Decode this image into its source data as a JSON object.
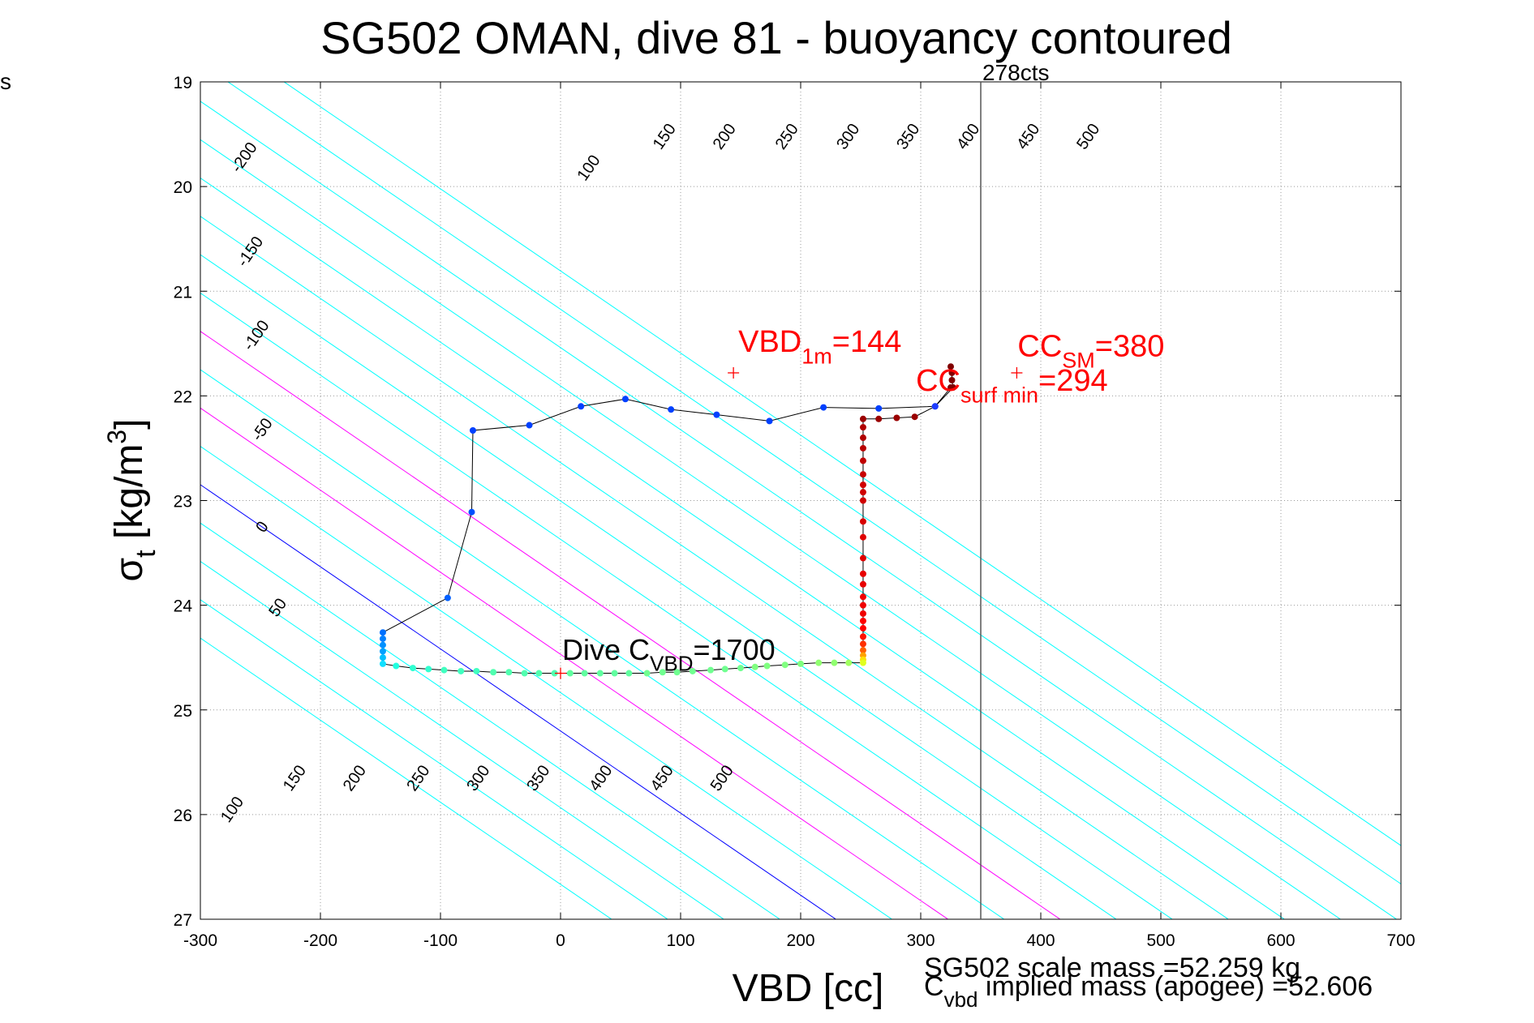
{
  "chart_data": {
    "type": "scatter",
    "title": "SG502 OMAN, dive 81 - buoyancy contoured",
    "xlabel": "VBD [cc]",
    "ylabel_base": "σ",
    "ylabel_sub": "t",
    "ylabel_unit_pre": " [kg/m",
    "ylabel_unit_sup": "3",
    "ylabel_unit_post": "]",
    "xlim": [
      -300,
      700
    ],
    "ylim": [
      19,
      27
    ],
    "y_reversed": true,
    "grid": true,
    "x_ticks": [
      -300,
      -200,
      -100,
      0,
      100,
      200,
      300,
      400,
      500,
      600,
      700
    ],
    "y_ticks": [
      19,
      20,
      21,
      22,
      23,
      24,
      25,
      26,
      27
    ],
    "corner_text": "s",
    "top_marker": {
      "x": 350,
      "label": "278cts"
    },
    "contours": {
      "levels": [
        -200,
        -150,
        -100,
        -50,
        0,
        50,
        100,
        150,
        200,
        250,
        300,
        350,
        400,
        450,
        500,
        550,
        600
      ],
      "colors": {
        "default": "#00ffff",
        "zero": "#0000ff",
        "highlight": "#ff00ff"
      },
      "highlight_levels": [
        100,
        200
      ],
      "labels_upper": [
        {
          "text": "-200",
          "x": -260,
          "y": 19.75
        },
        {
          "text": "-150",
          "x": -255,
          "y": 20.65
        },
        {
          "text": "-100",
          "x": -250,
          "y": 21.45
        },
        {
          "text": "-50",
          "x": -245,
          "y": 22.35
        },
        {
          "text": "0",
          "x": -245,
          "y": 23.28
        },
        {
          "text": "50",
          "x": -232,
          "y": 24.05
        },
        {
          "text": "100",
          "x": 27,
          "y": 19.85
        },
        {
          "text": "150",
          "x": 90,
          "y": 19.55
        },
        {
          "text": "200",
          "x": 140,
          "y": 19.55
        },
        {
          "text": "250",
          "x": 192,
          "y": 19.55
        },
        {
          "text": "300",
          "x": 243,
          "y": 19.55
        },
        {
          "text": "350",
          "x": 293,
          "y": 19.55
        },
        {
          "text": "400",
          "x": 343,
          "y": 19.55
        },
        {
          "text": "450",
          "x": 393,
          "y": 19.55
        },
        {
          "text": "500",
          "x": 443,
          "y": 19.55
        }
      ],
      "labels_lower": [
        {
          "text": "100",
          "x": -270,
          "y": 25.98
        },
        {
          "text": "150",
          "x": -218,
          "y": 25.68
        },
        {
          "text": "200",
          "x": -168,
          "y": 25.68
        },
        {
          "text": "250",
          "x": -115,
          "y": 25.68
        },
        {
          "text": "300",
          "x": -65,
          "y": 25.68
        },
        {
          "text": "350",
          "x": -15,
          "y": 25.68
        },
        {
          "text": "400",
          "x": 37,
          "y": 25.68
        },
        {
          "text": "450",
          "x": 88,
          "y": 25.68
        },
        {
          "text": "500",
          "x": 138,
          "y": 25.68
        }
      ]
    },
    "series": [
      {
        "kind": "dive_profile",
        "points": [
          {
            "x": 325,
            "y": 21.72,
            "c": "#800000"
          },
          {
            "x": 326,
            "y": 21.78,
            "c": "#800000"
          },
          {
            "x": 326,
            "y": 21.85,
            "c": "#800000"
          },
          {
            "x": 327,
            "y": 21.92,
            "c": "#800000"
          },
          {
            "x": 312,
            "y": 22.1,
            "c": "#1e3cff"
          },
          {
            "x": 295,
            "y": 22.2,
            "c": "#9a0000"
          },
          {
            "x": 280,
            "y": 22.21,
            "c": "#9a0000"
          },
          {
            "x": 265,
            "y": 22.22,
            "c": "#9a0000"
          },
          {
            "x": 252,
            "y": 22.22,
            "c": "#9a0000"
          },
          {
            "x": 252,
            "y": 22.3,
            "c": "#b00000"
          },
          {
            "x": 252,
            "y": 22.4,
            "c": "#b00000"
          },
          {
            "x": 252,
            "y": 22.5,
            "c": "#b80000"
          },
          {
            "x": 252,
            "y": 22.62,
            "c": "#c00000"
          },
          {
            "x": 252,
            "y": 22.75,
            "c": "#c80000"
          },
          {
            "x": 252,
            "y": 22.85,
            "c": "#d00000"
          },
          {
            "x": 252,
            "y": 22.92,
            "c": "#d00000"
          },
          {
            "x": 252,
            "y": 23.0,
            "c": "#d00000"
          },
          {
            "x": 252,
            "y": 23.2,
            "c": "#d80000"
          },
          {
            "x": 252,
            "y": 23.35,
            "c": "#e00000"
          },
          {
            "x": 252,
            "y": 23.55,
            "c": "#e00000"
          },
          {
            "x": 252,
            "y": 23.7,
            "c": "#e80000"
          },
          {
            "x": 252,
            "y": 23.8,
            "c": "#e80000"
          },
          {
            "x": 252,
            "y": 23.92,
            "c": "#f00000"
          },
          {
            "x": 252,
            "y": 24.0,
            "c": "#f00000"
          },
          {
            "x": 252,
            "y": 24.08,
            "c": "#f00000"
          },
          {
            "x": 252,
            "y": 24.15,
            "c": "#ff0000"
          },
          {
            "x": 252,
            "y": 24.22,
            "c": "#ff0000"
          },
          {
            "x": 252,
            "y": 24.3,
            "c": "#ff1000"
          },
          {
            "x": 252,
            "y": 24.37,
            "c": "#ff3000"
          },
          {
            "x": 252,
            "y": 24.43,
            "c": "#ff6000"
          },
          {
            "x": 252,
            "y": 24.48,
            "c": "#ffa000"
          },
          {
            "x": 252,
            "y": 24.52,
            "c": "#ffe000"
          },
          {
            "x": 252,
            "y": 24.55,
            "c": "#e0ff20"
          },
          {
            "x": 240,
            "y": 24.55,
            "c": "#a0ff60"
          },
          {
            "x": 228,
            "y": 24.55,
            "c": "#90ff70"
          },
          {
            "x": 215,
            "y": 24.55,
            "c": "#90ff70"
          },
          {
            "x": 200,
            "y": 24.56,
            "c": "#80ff80"
          },
          {
            "x": 187,
            "y": 24.57,
            "c": "#80ff80"
          },
          {
            "x": 172,
            "y": 24.58,
            "c": "#80ff80"
          },
          {
            "x": 162,
            "y": 24.59,
            "c": "#80ff80"
          },
          {
            "x": 150,
            "y": 24.6,
            "c": "#70ff90"
          },
          {
            "x": 137,
            "y": 24.61,
            "c": "#70ff90"
          },
          {
            "x": 125,
            "y": 24.62,
            "c": "#70ff90"
          },
          {
            "x": 110,
            "y": 24.63,
            "c": "#70ff90"
          },
          {
            "x": 97,
            "y": 24.64,
            "c": "#70ff90"
          },
          {
            "x": 85,
            "y": 24.64,
            "c": "#70ff90"
          },
          {
            "x": 72,
            "y": 24.65,
            "c": "#70ff90"
          },
          {
            "x": 57,
            "y": 24.65,
            "c": "#60ffa0"
          },
          {
            "x": 45,
            "y": 24.65,
            "c": "#60ffa0"
          },
          {
            "x": 33,
            "y": 24.65,
            "c": "#60ffa0"
          },
          {
            "x": 20,
            "y": 24.65,
            "c": "#60ffa0"
          },
          {
            "x": 8,
            "y": 24.65,
            "c": "#60ffa0"
          },
          {
            "x": -5,
            "y": 24.65,
            "c": "#50ffb0"
          },
          {
            "x": -18,
            "y": 24.65,
            "c": "#50ffb0"
          },
          {
            "x": -30,
            "y": 24.65,
            "c": "#50ffb0"
          },
          {
            "x": -43,
            "y": 24.64,
            "c": "#50ffb0"
          },
          {
            "x": -56,
            "y": 24.64,
            "c": "#50ffb0"
          },
          {
            "x": -70,
            "y": 24.63,
            "c": "#40ffc0"
          },
          {
            "x": -83,
            "y": 24.63,
            "c": "#40ffc0"
          },
          {
            "x": -97,
            "y": 24.62,
            "c": "#40ffc0"
          },
          {
            "x": -110,
            "y": 24.61,
            "c": "#30ffd0"
          },
          {
            "x": -123,
            "y": 24.6,
            "c": "#30ffd0"
          },
          {
            "x": -137,
            "y": 24.58,
            "c": "#20ffe0"
          },
          {
            "x": -148,
            "y": 24.56,
            "c": "#10e0ff"
          },
          {
            "x": -148,
            "y": 24.5,
            "c": "#00c0ff"
          },
          {
            "x": -148,
            "y": 24.44,
            "c": "#00a0ff"
          },
          {
            "x": -148,
            "y": 24.38,
            "c": "#0090ff"
          },
          {
            "x": -148,
            "y": 24.32,
            "c": "#0080ff"
          },
          {
            "x": -148,
            "y": 24.26,
            "c": "#0070ff"
          },
          {
            "x": -94,
            "y": 23.93,
            "c": "#0060ff"
          },
          {
            "x": -74,
            "y": 23.11,
            "c": "#0050ff"
          },
          {
            "x": -73,
            "y": 22.33,
            "c": "#0040ff"
          },
          {
            "x": -26,
            "y": 22.28,
            "c": "#0040ff"
          },
          {
            "x": 17,
            "y": 22.1,
            "c": "#0040ff"
          },
          {
            "x": 54,
            "y": 22.03,
            "c": "#0040ff"
          },
          {
            "x": 92,
            "y": 22.13,
            "c": "#0040ff"
          },
          {
            "x": 130,
            "y": 22.18,
            "c": "#0040ff"
          },
          {
            "x": 174,
            "y": 22.24,
            "c": "#0040ff"
          },
          {
            "x": 219,
            "y": 22.11,
            "c": "#0040ff"
          },
          {
            "x": 265,
            "y": 22.12,
            "c": "#0040ff"
          },
          {
            "x": 312,
            "y": 22.1,
            "c": "#1e3cff"
          },
          {
            "x": 325,
            "y": 21.92,
            "c": "#800000"
          }
        ]
      }
    ],
    "annotations": [
      {
        "id": "vbd1m",
        "marker_x": 144,
        "marker_y": 21.78,
        "text_main": "VBD",
        "text_sub": "1m",
        "text_tail": "=144",
        "color": "#ff0000"
      },
      {
        "id": "cc_surf",
        "text_main": "CC",
        "text_sub": "surf min",
        "text_tail": "=294",
        "color": "#ff0000"
      },
      {
        "id": "cc_sm",
        "marker_x": 380,
        "marker_y": 21.78,
        "text_main": "CC",
        "text_sub": "SM",
        "text_tail": "=380",
        "color": "#ff0000"
      },
      {
        "id": "dive_c",
        "marker_x": 0,
        "marker_y": 24.65,
        "text_main": "Dive C",
        "text_sub": "VBD",
        "text_tail": "=1700",
        "color": "#000000"
      }
    ],
    "footer": {
      "scale_mass": "SG502 scale mass =52.259 kg",
      "implied_main": "C",
      "implied_sub": "vbd",
      "implied_tail": " implied mass (apogee) =52.606"
    }
  }
}
